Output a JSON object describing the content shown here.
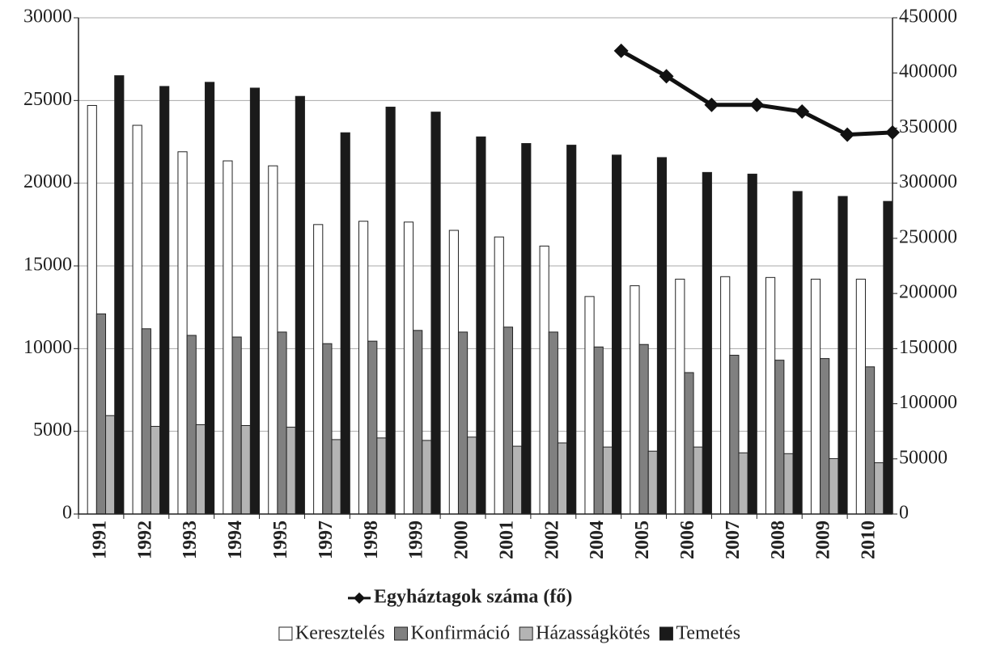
{
  "chart_data": {
    "type": "bar",
    "categories": [
      "1991",
      "1992",
      "1993",
      "1994",
      "1995",
      "1997",
      "1998",
      "1999",
      "2000",
      "2001",
      "2002",
      "2004",
      "2005",
      "2006",
      "2007",
      "2008",
      "2009",
      "2010"
    ],
    "series": [
      {
        "name": "Keresztelés",
        "color": "#ffffff",
        "values": [
          24700,
          23500,
          21900,
          21350,
          21050,
          17500,
          17700,
          17650,
          17150,
          16750,
          16200,
          13150,
          13800,
          14200,
          14350,
          14300,
          14200,
          14200
        ]
      },
      {
        "name": "Konfirmáció",
        "color": "#808080",
        "values": [
          12100,
          11200,
          10800,
          10700,
          11000,
          10300,
          10450,
          11100,
          11000,
          11300,
          11000,
          10100,
          10250,
          8550,
          9600,
          9300,
          9400,
          8900
        ]
      },
      {
        "name": "Házasságkötés",
        "color": "#b4b4b4",
        "values": [
          5950,
          5300,
          5400,
          5350,
          5250,
          4500,
          4600,
          4450,
          4650,
          4100,
          4300,
          4050,
          3800,
          4050,
          3700,
          3650,
          3350,
          3100
        ]
      },
      {
        "name": "Temetés",
        "color": "#1a1a1a",
        "values": [
          26500,
          25850,
          26100,
          25750,
          25250,
          23050,
          24600,
          24300,
          22800,
          22400,
          22300,
          21700,
          21550,
          20650,
          20550,
          19500,
          19200,
          18900
        ]
      },
      {
        "name": "Egyháztagok száma (fő)",
        "color": "#111111",
        "axis": "y2",
        "values": [
          null,
          null,
          null,
          null,
          null,
          null,
          null,
          null,
          null,
          null,
          null,
          420000,
          397000,
          371000,
          371000,
          365000,
          344000,
          346000
        ]
      }
    ],
    "ylim": [
      0,
      30000
    ],
    "yticks": [
      0,
      5000,
      10000,
      15000,
      20000,
      25000,
      30000
    ],
    "y2lim": [
      0,
      450000
    ],
    "y2ticks": [
      0,
      50000,
      100000,
      150000,
      200000,
      250000,
      300000,
      350000,
      400000,
      450000
    ],
    "grid": true,
    "legend": "bottom"
  }
}
